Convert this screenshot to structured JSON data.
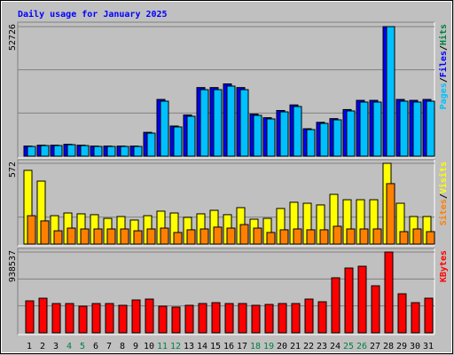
{
  "chart_data": {
    "type": "bar",
    "title": "Daily usage for January 2025",
    "title_color": "#0000ff",
    "legend_separator": "/",
    "categories": [
      "1",
      "2",
      "3",
      "4",
      "5",
      "6",
      "7",
      "8",
      "9",
      "10",
      "11",
      "12",
      "13",
      "14",
      "15",
      "16",
      "17",
      "18",
      "19",
      "20",
      "21",
      "22",
      "23",
      "24",
      "25",
      "26",
      "27",
      "28",
      "29",
      "30",
      "31"
    ],
    "category_colors": [
      "#000000",
      "#000000",
      "#000000",
      "#008040",
      "#008040",
      "#000000",
      "#000000",
      "#000000",
      "#000000",
      "#000000",
      "#008040",
      "#008040",
      "#000000",
      "#000000",
      "#000000",
      "#000000",
      "#000000",
      "#008040",
      "#008040",
      "#000000",
      "#000000",
      "#000000",
      "#000000",
      "#000000",
      "#008040",
      "#008040",
      "#000000",
      "#000000",
      "#000000",
      "#000000",
      "#000000"
    ],
    "panels": [
      {
        "ylim": [
          0,
          52726
        ],
        "yticks": [
          52726
        ],
        "gridlines": [
          17575,
          35151
        ],
        "legend_order": [
          2,
          1,
          0
        ],
        "series": [
          {
            "name": "Hits",
            "color": "#008040",
            "values": [
              4090,
              4460,
              4460,
              4830,
              4460,
              4090,
              4090,
              4090,
              4090,
              9670,
              23060,
              12280,
              16740,
              27890,
              27890,
              29390,
              27890,
              17110,
              15630,
              18590,
              20830,
              11150,
              13760,
              15250,
              18970,
              22690,
              22690,
              52726,
              23060,
              22690,
              23060
            ]
          },
          {
            "name": "Files",
            "color": "#0000ff",
            "values": [
              4090,
              4460,
              4460,
              4830,
              4460,
              4090,
              4090,
              4090,
              4090,
              9670,
              23060,
              12280,
              16740,
              27890,
              27890,
              29390,
              27890,
              17110,
              15630,
              18590,
              20830,
              11150,
              13760,
              15250,
              18970,
              22690,
              22690,
              52726,
              23060,
              22690,
              23060
            ]
          },
          {
            "name": "Pages",
            "color": "#00c0ff",
            "values": [
              3970,
              4330,
              4330,
              4690,
              4330,
              3970,
              3970,
              3970,
              3970,
              9390,
              22390,
              11920,
              16250,
              27080,
              27080,
              28530,
              27080,
              16610,
              15170,
              18050,
              20220,
              10830,
              13360,
              14810,
              18420,
              22030,
              22030,
              52726,
              22390,
              22030,
              22390
            ]
          }
        ]
      },
      {
        "ylim": [
          0,
          572
        ],
        "yticks": [
          572
        ],
        "gridlines": [
          191
        ],
        "legend_order": [
          1,
          0
        ],
        "series": [
          {
            "name": "Visits",
            "color": "#ffff00",
            "values": [
              522,
              446,
              201,
              220,
              214,
              208,
              182,
              195,
              170,
              201,
              233,
              220,
              189,
              214,
              239,
              208,
              258,
              176,
              182,
              252,
              296,
              289,
              277,
              352,
              314,
              314,
              314,
              572,
              289,
              195,
              195
            ]
          },
          {
            "name": "Sites",
            "color": "#ff8000",
            "values": [
              201,
              164,
              94,
              113,
              107,
              107,
              107,
              107,
              94,
              107,
              113,
              82,
              101,
              107,
              120,
              113,
              138,
              113,
              82,
              101,
              107,
              101,
              101,
              126,
              107,
              107,
              107,
              428,
              88,
              107,
              88
            ]
          }
        ]
      },
      {
        "ylim": [
          0,
          938537
        ],
        "yticks": [
          938537
        ],
        "gridlines": [
          312846,
          625691
        ],
        "legend_order": [
          0
        ],
        "series": [
          {
            "name": "KBytes",
            "color": "#ff0000",
            "values": [
              371270,
              402200,
              340330,
              340330,
              309390,
              340330,
              340330,
              319700,
              381580,
              391890,
              309390,
              299080,
              319700,
              340330,
              350640,
              340330,
              340330,
              319700,
              330020,
              340330,
              340330,
              391890,
              360950,
              639420,
              752850,
              773480,
              546590,
              938537,
              453770,
              350640,
              402200
            ]
          }
        ]
      }
    ]
  }
}
